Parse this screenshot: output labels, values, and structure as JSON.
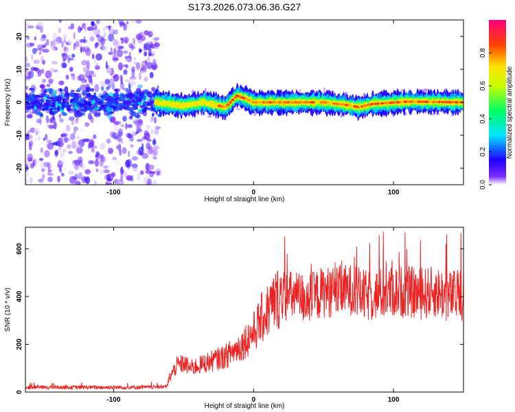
{
  "title": "S173.2026.073.06.36.G27",
  "chart_data": [
    {
      "type": "heatmap",
      "xlabel": "Height of straight line (km)",
      "ylabel": "Frequency (Hz)",
      "xlim": [
        -163,
        150
      ],
      "ylim": [
        -25,
        25
      ],
      "xticks": [
        -100,
        0,
        100
      ],
      "xtick_labels": [
        "-100",
        "0",
        "100"
      ],
      "yticks": [
        -20,
        -10,
        0,
        10,
        20
      ],
      "ytick_labels": [
        "-20",
        "-10",
        "0",
        "10",
        "20"
      ],
      "ridge_x": [
        -163,
        -100,
        -70,
        -50,
        -35,
        -25,
        -20,
        -12,
        -5,
        0,
        20,
        50,
        70,
        75,
        85,
        110,
        150
      ],
      "ridge_freq": [
        0,
        0,
        0,
        -1,
        0,
        -1,
        -1.5,
        2,
        1,
        0,
        0,
        0,
        -1,
        -1.5,
        -0.5,
        0.2,
        0
      ],
      "noise_region_x": [
        -163,
        -68
      ],
      "colorbar": {
        "label": "Normalized spectral amplitude",
        "range": [
          0,
          1
        ],
        "ticks": [
          0.0,
          0.2,
          0.4,
          0.6,
          0.8
        ],
        "tick_labels": [
          "0.0",
          "0.2",
          "0.4",
          "0.6",
          "0.8"
        ],
        "colors": [
          "#ffffff",
          "#4b00ff",
          "#0000ff",
          "#00ffff",
          "#00ff00",
          "#ffff00",
          "#ff8800",
          "#ff0000",
          "#ff0080"
        ]
      }
    },
    {
      "type": "line",
      "xlabel": "Height of straight line (km)",
      "ylabel": "SNR (10 * v/v)",
      "xlim": [
        -163,
        150
      ],
      "ylim": [
        0,
        690
      ],
      "xticks": [
        -100,
        0,
        100
      ],
      "xtick_labels": [
        "-100",
        "0",
        "100"
      ],
      "yticks": [
        0,
        200,
        400,
        600
      ],
      "ytick_labels": [
        "0",
        "200",
        "400",
        "600"
      ],
      "series": [
        {
          "name": "SNR",
          "color": "#ee2222",
          "x": [
            -163,
            -140,
            -120,
            -100,
            -80,
            -62,
            -60,
            -55,
            -50,
            -45,
            -40,
            -35,
            -30,
            -25,
            -20,
            -15,
            -10,
            -5,
            0,
            5,
            10,
            15,
            20,
            25,
            30,
            40,
            50,
            60,
            70,
            80,
            90,
            100,
            110,
            120,
            130,
            140,
            150
          ],
          "values": [
            20,
            20,
            20,
            20,
            20,
            22,
            60,
            110,
            120,
            100,
            110,
            120,
            130,
            140,
            150,
            170,
            190,
            220,
            250,
            300,
            340,
            380,
            410,
            400,
            400,
            390,
            420,
            420,
            430,
            400,
            410,
            420,
            420,
            410,
            420,
            400,
            410
          ]
        }
      ]
    }
  ]
}
